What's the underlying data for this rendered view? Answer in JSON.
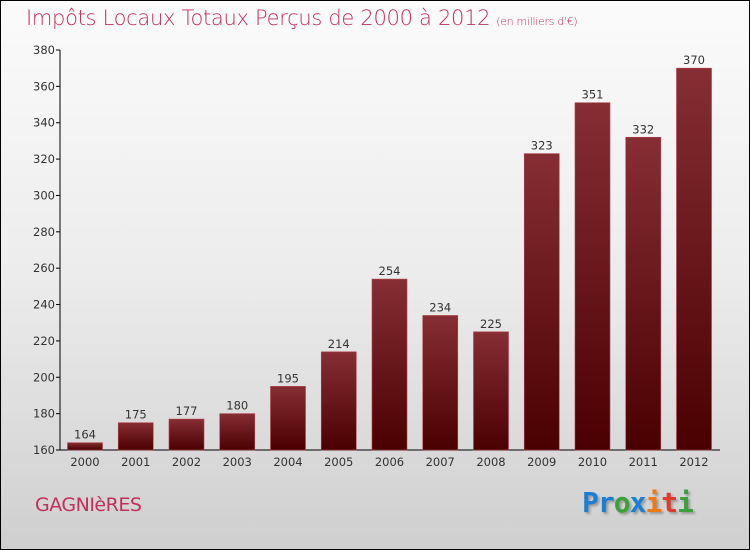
{
  "chart_data": {
    "type": "bar",
    "title": "Impôts Locaux Totaux Perçus de 2000 à 2012",
    "subtitle": "(en milliers d'€)",
    "categories": [
      "2000",
      "2001",
      "2002",
      "2003",
      "2004",
      "2005",
      "2006",
      "2007",
      "2008",
      "2009",
      "2010",
      "2011",
      "2012"
    ],
    "values": [
      164,
      175,
      177,
      180,
      195,
      214,
      254,
      234,
      225,
      323,
      351,
      332,
      370
    ],
    "xlabel": "",
    "ylabel": "",
    "ylim": [
      160,
      380
    ],
    "yticks": [
      160,
      180,
      200,
      220,
      240,
      260,
      280,
      300,
      320,
      340,
      360,
      380
    ],
    "grid": false,
    "bar_color": "#7a1c22"
  },
  "footer": {
    "city": "GAGNIèRES",
    "logo": [
      "P",
      "r",
      "o",
      "x",
      "i",
      "t",
      "i"
    ]
  },
  "logo_colors": [
    "#1a7fd4",
    "#1a7fd4",
    "#3aa23a",
    "#1a7fd4",
    "#f07a10",
    "#e03a2a",
    "#3aa23a"
  ]
}
